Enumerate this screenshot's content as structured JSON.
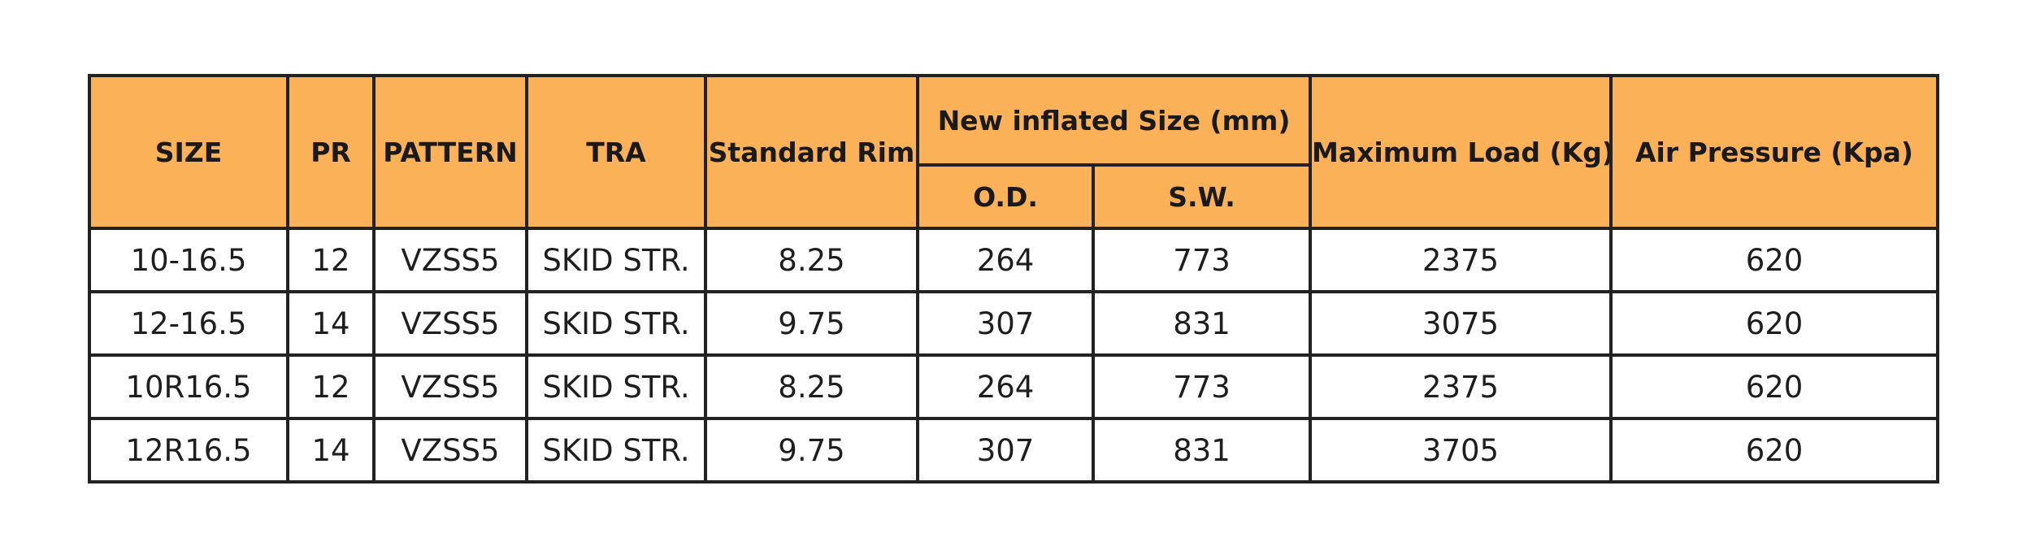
{
  "table": {
    "headers": {
      "size": "SIZE",
      "pr": "PR",
      "pattern": "PATTERN",
      "tra": "TRA",
      "standard_rim": "Standard Rim",
      "new_inflated_size": "New inflated Size (mm)",
      "od": "O.D.",
      "sw": "S.W.",
      "maximum_load": "Maximum Load (Kg)",
      "air_pressure": "Air Pressure (Kpa)"
    },
    "rows": [
      [
        "10-16.5",
        "12",
        "VZSS5",
        "SKID STR.",
        "8.25",
        "264",
        "773",
        "2375",
        "620"
      ],
      [
        "12-16.5",
        "14",
        "VZSS5",
        "SKID STR.",
        "9.75",
        "307",
        "831",
        "3075",
        "620"
      ],
      [
        "10R16.5",
        "12",
        "VZSS5",
        "SKID STR.",
        "8.25",
        "264",
        "773",
        "2375",
        "620"
      ],
      [
        "12R16.5",
        "14",
        "VZSS5",
        "SKID STR.",
        "9.75",
        "307",
        "831",
        "3705",
        "620"
      ]
    ]
  },
  "colors": {
    "header_bg": "#fbb157",
    "border": "#222222",
    "cell_bg": "#ffffff"
  }
}
